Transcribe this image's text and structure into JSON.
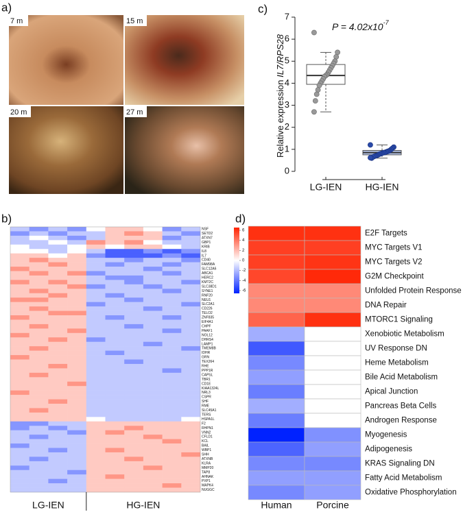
{
  "panel_labels": [
    "a)",
    "b)",
    "c)",
    "d)"
  ],
  "photo_labels": [
    "7 m",
    "15 m",
    "20 m",
    "27 m"
  ],
  "chart_data": [
    {
      "type": "box",
      "ylabel": "Relative expression ",
      "ylabel_italic": "IL7/RPS28",
      "annotation": "P = 4.02x10",
      "annotation_exp": "-7",
      "categories": [
        "LG-IEN",
        "HG-IEN"
      ],
      "boxes": [
        {
          "whislo": 2.7,
          "q1": 3.95,
          "med": 4.35,
          "q3": 4.85,
          "whishi": 5.4,
          "points": [
            6.3,
            5.4,
            5.2,
            5.0,
            4.9,
            4.8,
            4.7,
            4.6,
            4.5,
            4.4,
            4.35,
            4.3,
            4.2,
            4.1,
            4.0,
            3.9,
            3.7,
            3.5,
            3.2,
            2.7
          ]
        },
        {
          "whislo": 0.6,
          "q1": 0.75,
          "med": 0.85,
          "q3": 0.95,
          "whishi": 1.2,
          "points": [
            1.2,
            1.1,
            1.05,
            1.0,
            0.95,
            0.92,
            0.9,
            0.88,
            0.85,
            0.85,
            0.82,
            0.8,
            0.78,
            0.75,
            0.72,
            0.7,
            0.68,
            0.65,
            0.6,
            0.62
          ]
        }
      ],
      "ylim": [
        0,
        7
      ],
      "yticks": [
        0,
        1,
        2,
        3,
        4,
        5,
        6,
        7
      ]
    },
    {
      "type": "heatmap",
      "group_labels": [
        "LG-IEN",
        "HG-IEN"
      ],
      "rows": [
        "NSF",
        "SETD2",
        "ATXN7",
        "GBP1",
        "KRIB",
        "IL8",
        "IL7",
        "CD40",
        "FAM98A",
        "SLC12A6",
        "ABCA1",
        "HERC2",
        "KMT2C",
        "SLC38D1",
        "SYNE1",
        "RNF20",
        "NEU1",
        "SLC2A1",
        "CD226",
        "TELO2",
        "ZNF835",
        "EIF4A1",
        "CHPF",
        "PAAF1",
        "NOL12",
        "DHRS4",
        "LAMP1",
        "TMEM8B",
        "IDHR",
        "GRN",
        "TEX264",
        "RHE",
        "PPP1R",
        "CAPSL",
        "TBR1",
        "CD1E",
        "KIAA1324L",
        "NRL3",
        "CSPR",
        "SHF",
        "RME",
        "SLC45A1",
        "TERS",
        "HSPA1L",
        "F2",
        "RHPN1",
        "VNN2",
        "CFLD1",
        "KCL",
        "BAIL",
        "WBP1",
        "SHH",
        "ATXNB",
        "KLRA",
        "MMP20",
        "TAP8",
        "AHNAK",
        "PXP1",
        "MAPK4",
        "NUGGC"
      ],
      "values": [
        [
          -1,
          -2,
          -1,
          -2,
          0,
          1,
          1,
          0,
          -2,
          -1
        ],
        [
          -2,
          -1,
          -2,
          -1,
          -1,
          1,
          2,
          1,
          -1,
          -2
        ],
        [
          -1,
          0,
          -1,
          -2,
          -1,
          1,
          1,
          1,
          -2,
          -1
        ],
        [
          -1,
          -1,
          0,
          -1,
          2,
          1,
          2,
          0,
          -1,
          -1
        ],
        [
          0,
          -1,
          -1,
          0,
          1,
          0,
          1,
          1,
          0,
          -1
        ],
        [
          0,
          0,
          -1,
          0,
          -1,
          -3,
          -3,
          -2,
          -3,
          -2
        ],
        [
          1,
          1,
          0,
          1,
          -2,
          -3,
          -3,
          -3,
          -2,
          -3
        ],
        [
          1,
          2,
          1,
          1,
          -1,
          -1,
          -2,
          -1,
          -1,
          -2
        ],
        [
          1,
          1,
          2,
          1,
          -1,
          -2,
          -1,
          -1,
          -2,
          -1
        ],
        [
          2,
          1,
          1,
          1,
          -1,
          -1,
          -1,
          -2,
          -1,
          -1
        ],
        [
          1,
          2,
          1,
          2,
          -2,
          -1,
          -1,
          -1,
          -2,
          -1
        ],
        [
          1,
          1,
          1,
          1,
          -1,
          -2,
          -2,
          -1,
          -1,
          -1
        ],
        [
          2,
          1,
          2,
          1,
          -1,
          -1,
          -2,
          -1,
          -1,
          -2
        ],
        [
          1,
          1,
          1,
          2,
          -2,
          -1,
          -1,
          -2,
          -1,
          -1
        ],
        [
          1,
          2,
          1,
          1,
          -1,
          -1,
          -1,
          -1,
          -2,
          -1
        ],
        [
          1,
          1,
          2,
          1,
          -1,
          -2,
          -1,
          -1,
          -1,
          -1
        ],
        [
          2,
          2,
          1,
          1,
          -1,
          -1,
          -2,
          -1,
          -1,
          -1
        ],
        [
          1,
          1,
          1,
          1,
          -2,
          -1,
          -1,
          -1,
          -1,
          -2
        ],
        [
          1,
          2,
          1,
          1,
          -1,
          -1,
          -1,
          -2,
          -1,
          -1
        ],
        [
          1,
          1,
          2,
          2,
          -1,
          -1,
          -1,
          -1,
          -1,
          -1
        ],
        [
          2,
          1,
          1,
          1,
          -1,
          -2,
          -1,
          -1,
          -2,
          -1
        ],
        [
          1,
          1,
          1,
          1,
          -1,
          -1,
          -1,
          -1,
          -1,
          -1
        ],
        [
          1,
          2,
          1,
          1,
          -1,
          -1,
          -2,
          -1,
          -1,
          -1
        ],
        [
          1,
          1,
          1,
          2,
          -1,
          -1,
          -1,
          -1,
          -2,
          -1
        ],
        [
          2,
          1,
          1,
          1,
          -1,
          -1,
          -1,
          -1,
          -1,
          -1
        ],
        [
          1,
          1,
          2,
          1,
          -2,
          -1,
          -1,
          -1,
          -1,
          -1
        ],
        [
          1,
          1,
          1,
          1,
          -1,
          -1,
          -1,
          -2,
          -1,
          -1
        ],
        [
          1,
          2,
          1,
          1,
          -1,
          -1,
          -1,
          -1,
          -1,
          -2
        ],
        [
          1,
          1,
          1,
          1,
          -1,
          -2,
          -1,
          -1,
          -1,
          -1
        ],
        [
          2,
          1,
          1,
          1,
          -1,
          -1,
          -1,
          -1,
          -1,
          -1
        ],
        [
          1,
          1,
          1,
          1,
          -1,
          -1,
          -2,
          -1,
          -1,
          -1
        ],
        [
          1,
          1,
          2,
          1,
          -1,
          -1,
          -1,
          -1,
          -1,
          -1
        ],
        [
          1,
          1,
          1,
          1,
          -1,
          -1,
          -1,
          -1,
          -2,
          -1
        ],
        [
          1,
          2,
          1,
          1,
          -1,
          -1,
          -1,
          -1,
          -1,
          -1
        ],
        [
          1,
          1,
          1,
          1,
          -1,
          -1,
          -1,
          -1,
          -1,
          -1
        ],
        [
          1,
          1,
          1,
          2,
          -1,
          -1,
          -1,
          -1,
          -1,
          -1
        ],
        [
          1,
          1,
          1,
          1,
          -1,
          -1,
          -1,
          -1,
          -1,
          -1
        ],
        [
          2,
          1,
          1,
          1,
          -1,
          -1,
          -1,
          -1,
          -1,
          -1
        ],
        [
          1,
          1,
          1,
          1,
          -1,
          -1,
          -1,
          -1,
          -1,
          -1
        ],
        [
          1,
          1,
          2,
          1,
          -1,
          -1,
          -1,
          -1,
          -1,
          -1
        ],
        [
          1,
          1,
          1,
          1,
          -1,
          -1,
          -1,
          -1,
          -1,
          -1
        ],
        [
          1,
          2,
          1,
          1,
          -1,
          -1,
          -1,
          -1,
          -1,
          -1
        ],
        [
          1,
          1,
          1,
          1,
          -1,
          -1,
          -1,
          -1,
          -1,
          -1
        ],
        [
          1,
          1,
          1,
          1,
          0,
          -1,
          -1,
          -1,
          -1,
          0
        ],
        [
          -2,
          -2,
          -1,
          -1,
          1,
          1,
          1,
          1,
          1,
          1
        ],
        [
          -2,
          -1,
          -2,
          -1,
          1,
          1,
          2,
          1,
          1,
          1
        ],
        [
          -1,
          -1,
          -1,
          -2,
          1,
          2,
          1,
          1,
          1,
          1
        ],
        [
          -1,
          -2,
          -1,
          -1,
          1,
          1,
          1,
          2,
          1,
          1
        ],
        [
          -1,
          -1,
          -1,
          -1,
          1,
          1,
          1,
          1,
          2,
          1
        ],
        [
          -2,
          -1,
          -1,
          -1,
          1,
          1,
          1,
          1,
          1,
          1
        ],
        [
          -1,
          -1,
          -2,
          -1,
          1,
          2,
          1,
          1,
          1,
          1
        ],
        [
          -1,
          -1,
          -1,
          -1,
          1,
          1,
          1,
          1,
          1,
          2
        ],
        [
          -1,
          -2,
          -1,
          -1,
          1,
          1,
          2,
          1,
          1,
          1
        ],
        [
          -1,
          -1,
          -1,
          -1,
          1,
          1,
          1,
          1,
          1,
          1
        ],
        [
          -2,
          -1,
          -1,
          -1,
          1,
          1,
          1,
          2,
          1,
          1
        ],
        [
          -1,
          -1,
          -1,
          -2,
          1,
          1,
          1,
          1,
          1,
          1
        ],
        [
          -1,
          -1,
          -1,
          -1,
          1,
          2,
          1,
          1,
          1,
          1
        ],
        [
          -1,
          -1,
          -2,
          -1,
          1,
          1,
          1,
          1,
          1,
          1
        ],
        [
          -1,
          -1,
          -1,
          -1,
          1,
          1,
          1,
          1,
          2,
          1
        ],
        [
          -1,
          -1,
          -1,
          -1,
          1,
          1,
          1,
          1,
          1,
          1
        ]
      ]
    },
    {
      "type": "heatmap",
      "columns": [
        "Human",
        "Porcine"
      ],
      "rows": [
        "E2F Targets",
        "MYC Targets V1",
        "MYC Targets V2",
        "G2M Checkpoint",
        "Unfolded Protein Response",
        "DNA Repair",
        "MTORC1 Signaling",
        "Xenobiotic Metabolism",
        "UV Response DN",
        "Heme Metabolism",
        "Bile Acid Metabolism",
        "Apical Junction",
        "Pancreas Beta Cells",
        "Androgen Response",
        "Myogenesis",
        "Adipogenesis",
        "KRAS Signaling DN",
        "Fatty Acid Metabolism",
        "Oxidative Phosphorylation"
      ],
      "values": [
        [
          5.6,
          5.6
        ],
        [
          5.2,
          5.2
        ],
        [
          5.2,
          5.5
        ],
        [
          5.0,
          5.8
        ],
        [
          3.2,
          3.2
        ],
        [
          3.2,
          3.2
        ],
        [
          4.2,
          5.6
        ],
        [
          -2.2,
          0
        ],
        [
          -4.5,
          0
        ],
        [
          -3.2,
          0
        ],
        [
          -2.6,
          0
        ],
        [
          -3.5,
          0
        ],
        [
          -2.2,
          0
        ],
        [
          -3.5,
          0
        ],
        [
          -6,
          -3.0
        ],
        [
          -4.2,
          -2.6
        ],
        [
          -3.2,
          -3.2
        ],
        [
          -2.6,
          -2.6
        ],
        [
          -3.2,
          -2.6
        ]
      ],
      "clim": [
        -6,
        6
      ],
      "cticks": [
        6,
        4,
        2,
        0,
        -2,
        -4,
        -6
      ]
    }
  ]
}
